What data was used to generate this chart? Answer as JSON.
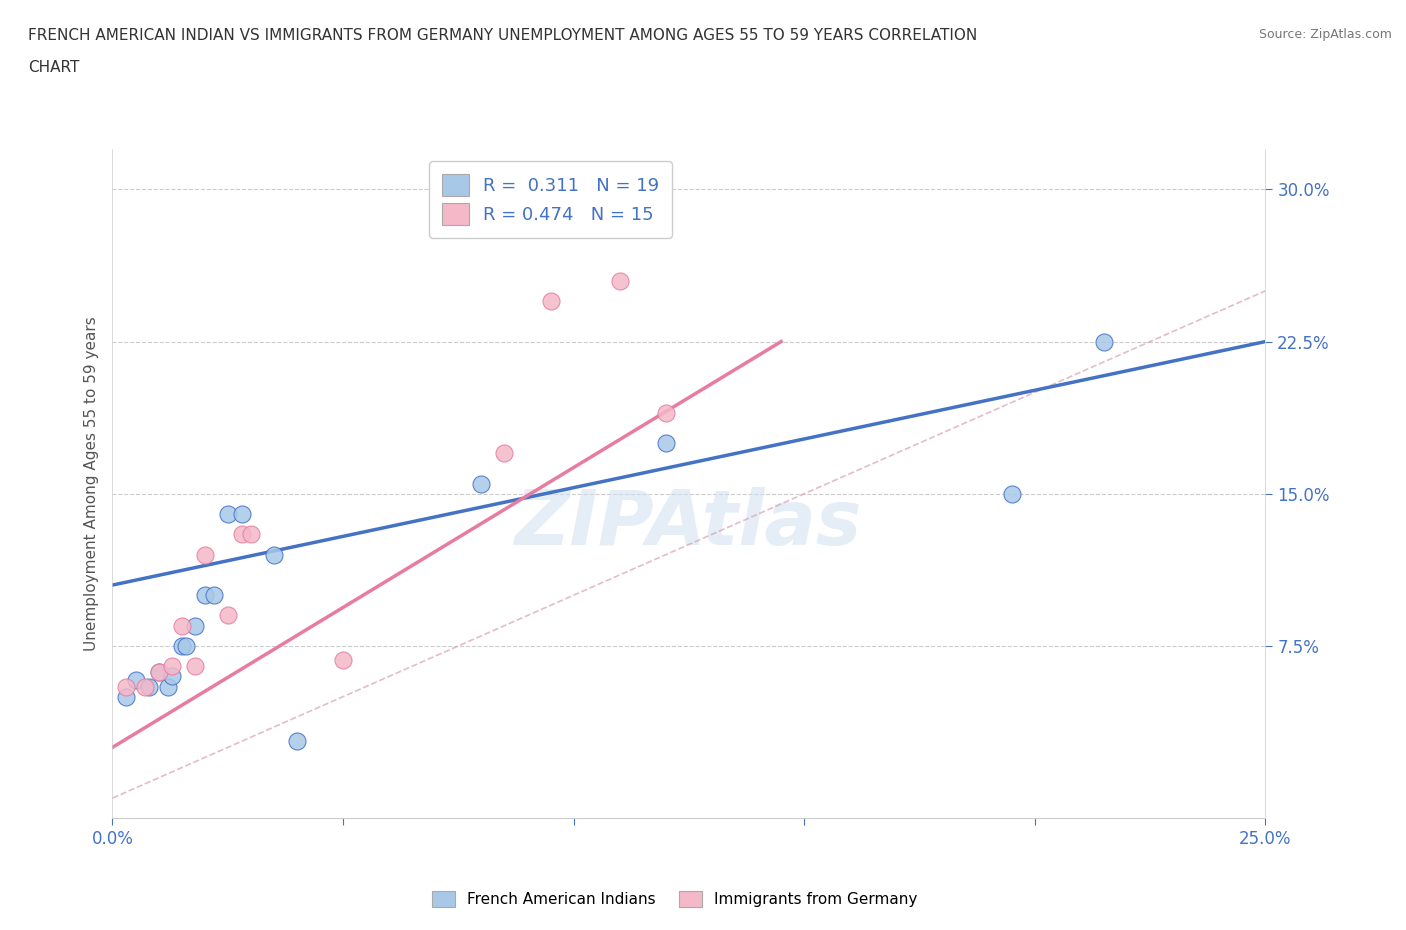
{
  "title_line1": "FRENCH AMERICAN INDIAN VS IMMIGRANTS FROM GERMANY UNEMPLOYMENT AMONG AGES 55 TO 59 YEARS CORRELATION",
  "title_line2": "CHART",
  "source_text": "Source: ZipAtlas.com",
  "ylabel": "Unemployment Among Ages 55 to 59 years",
  "xlim": [
    0.0,
    0.25
  ],
  "ylim": [
    -0.01,
    0.32
  ],
  "xticks": [
    0.0,
    0.05,
    0.1,
    0.15,
    0.2,
    0.25
  ],
  "yticks": [
    0.075,
    0.15,
    0.225,
    0.3
  ],
  "xtick_labels_show": [
    true,
    false,
    false,
    false,
    false,
    true
  ],
  "xtick_labels": [
    "0.0%",
    "",
    "",
    "",
    "",
    "25.0%"
  ],
  "ytick_labels": [
    "7.5%",
    "15.0%",
    "22.5%",
    "30.0%"
  ],
  "watermark": "ZIPAtlas",
  "color_blue": "#a8c8e8",
  "color_pink": "#f4b8c8",
  "line_blue": "#4472c4",
  "line_pink": "#e87ca0",
  "line_gray": "#c0c0c0",
  "blue_scatter_x": [
    0.003,
    0.005,
    0.008,
    0.01,
    0.012,
    0.013,
    0.015,
    0.016,
    0.018,
    0.02,
    0.022,
    0.025,
    0.028,
    0.035,
    0.04,
    0.08,
    0.12,
    0.195,
    0.215
  ],
  "blue_scatter_y": [
    0.05,
    0.058,
    0.055,
    0.062,
    0.055,
    0.06,
    0.075,
    0.075,
    0.085,
    0.1,
    0.1,
    0.14,
    0.14,
    0.12,
    0.028,
    0.155,
    0.175,
    0.15,
    0.225
  ],
  "pink_scatter_x": [
    0.003,
    0.007,
    0.01,
    0.013,
    0.015,
    0.018,
    0.02,
    0.025,
    0.028,
    0.03,
    0.05,
    0.085,
    0.095,
    0.11,
    0.12
  ],
  "pink_scatter_y": [
    0.055,
    0.055,
    0.062,
    0.065,
    0.085,
    0.065,
    0.12,
    0.09,
    0.13,
    0.13,
    0.068,
    0.17,
    0.245,
    0.255,
    0.19
  ],
  "blue_line_x": [
    0.0,
    0.25
  ],
  "blue_line_y": [
    0.105,
    0.225
  ],
  "pink_line_x": [
    0.0,
    0.145
  ],
  "pink_line_y": [
    0.025,
    0.225
  ],
  "diag_line_x": [
    0.0,
    0.25
  ],
  "diag_line_y": [
    0.0,
    0.25
  ]
}
